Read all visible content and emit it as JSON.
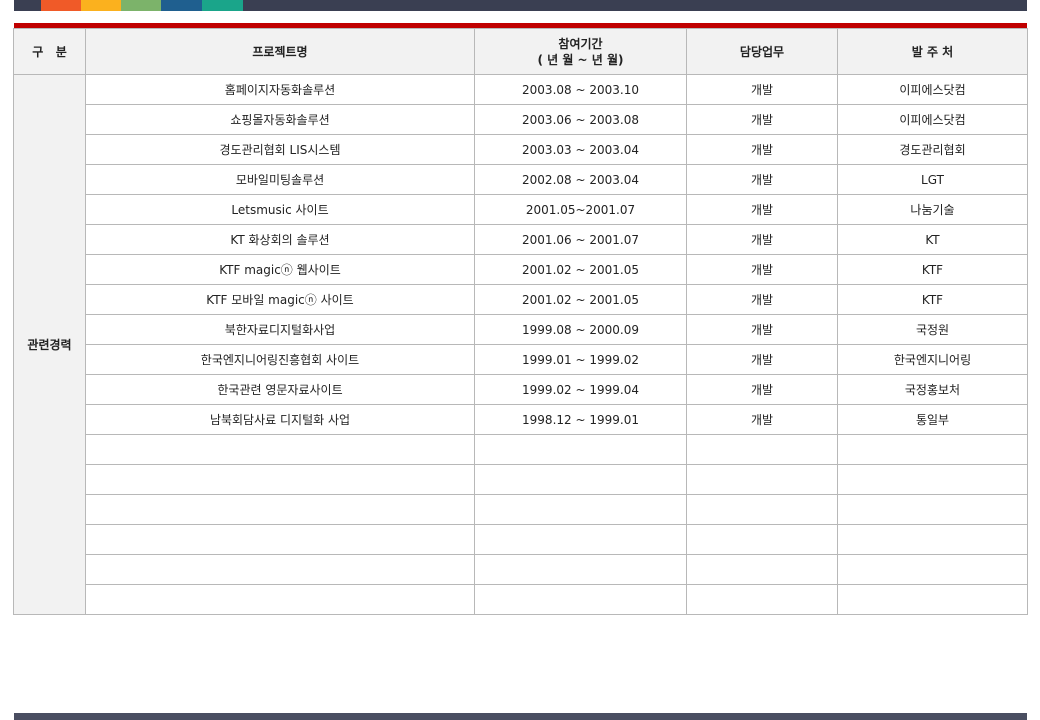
{
  "header_colors": {
    "bar": "#3a3f52",
    "swatches": [
      "#f05a28",
      "#fbb11e",
      "#7cb36a",
      "#1f5f8f",
      "#1aa58a"
    ],
    "accent_line": "#c00000"
  },
  "table": {
    "headers": {
      "category": "구   분",
      "project": "프로젝트명",
      "period_line1": "참여기간",
      "period_line2": "( 년 월 ~ 년 월)",
      "role": "담당업무",
      "client": "발 주 처"
    },
    "category_label": "관련경력",
    "rows": [
      {
        "project": "홈페이지자동화솔루션",
        "period": "2003.08 ~ 2003.10",
        "role": "개발",
        "client": "이피에스닷컴"
      },
      {
        "project": "쇼핑몰자동화솔루션",
        "period": "2003.06 ~ 2003.08",
        "role": "개발",
        "client": "이피에스닷컴"
      },
      {
        "project": "경도관리협회 LIS시스템",
        "period": "2003.03 ~ 2003.04",
        "role": "개발",
        "client": "경도관리협회"
      },
      {
        "project": "모바일미팅솔루션",
        "period": "2002.08 ~ 2003.04",
        "role": "개발",
        "client": "LGT"
      },
      {
        "project": "Letsmusic 사이트",
        "period": "2001.05~2001.07",
        "role": "개발",
        "client": "나눔기술"
      },
      {
        "project": "KT 화상회의 솔루션",
        "period": "2001.06 ~ 2001.07",
        "role": "개발",
        "client": "KT"
      },
      {
        "project": "KTF magicⓝ 웹사이트",
        "period": "2001.02 ~ 2001.05",
        "role": "개발",
        "client": "KTF"
      },
      {
        "project": "KTF 모바일 magicⓝ 사이트",
        "period": "2001.02 ~ 2001.05",
        "role": "개발",
        "client": "KTF"
      },
      {
        "project": "북한자료디지털화사업",
        "period": "1999.08 ~ 2000.09",
        "role": "개발",
        "client": "국정원"
      },
      {
        "project": "한국엔지니어링진흥협회 사이트",
        "period": "1999.01 ~ 1999.02",
        "role": "개발",
        "client": "한국엔지니어링"
      },
      {
        "project": "한국관련 영문자료사이트",
        "period": "1999.02 ~ 1999.04",
        "role": "개발",
        "client": "국정홍보처"
      },
      {
        "project": "남북회담사료 디지털화 사업",
        "period": "1998.12 ~ 1999.01",
        "role": "개발",
        "client": "통일부"
      },
      {
        "project": "",
        "period": "",
        "role": "",
        "client": ""
      },
      {
        "project": "",
        "period": "",
        "role": "",
        "client": ""
      },
      {
        "project": "",
        "period": "",
        "role": "",
        "client": ""
      },
      {
        "project": "",
        "period": "",
        "role": "",
        "client": ""
      },
      {
        "project": "",
        "period": "",
        "role": "",
        "client": ""
      },
      {
        "project": "",
        "period": "",
        "role": "",
        "client": ""
      }
    ]
  }
}
